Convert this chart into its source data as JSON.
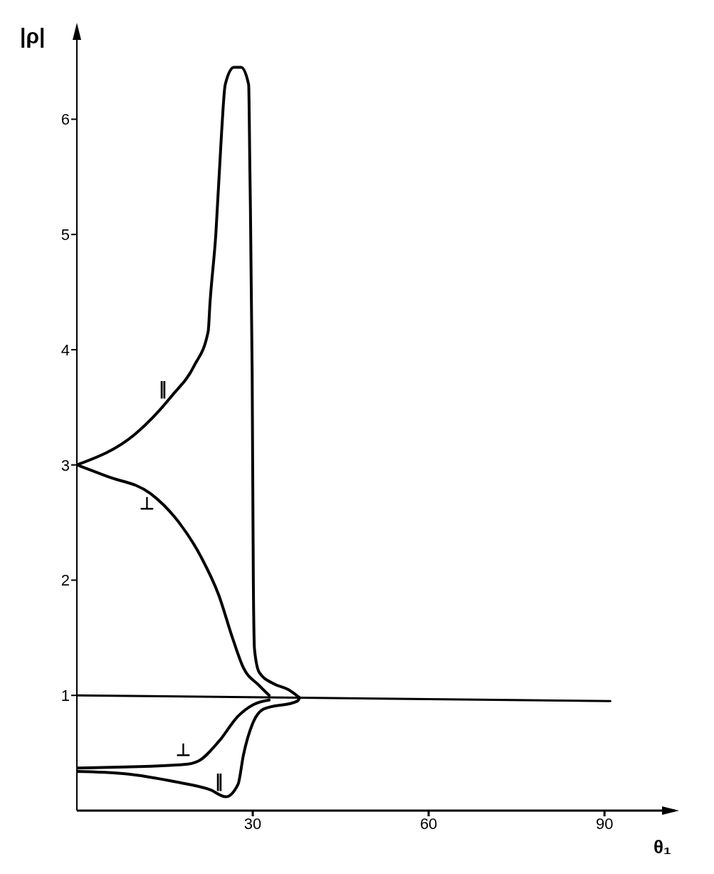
{
  "chart_data": {
    "type": "line",
    "xlabel": "θ₁",
    "ylabel": "|ρ|",
    "xlim": [
      0,
      102
    ],
    "ylim": [
      0,
      6.8
    ],
    "xticks": [
      30,
      60,
      90
    ],
    "yticks": [
      1,
      2,
      3,
      4,
      5,
      6
    ],
    "grid": false,
    "marker": "none",
    "line_style": "solid",
    "series": [
      {
        "name": "∥",
        "color": "#000000",
        "x": [
          0,
          10,
          16.2,
          20,
          22.4,
          22.7,
          23.7,
          24.7,
          25.3,
          26.8,
          28,
          29.3,
          29.5,
          29.9,
          30.1,
          30.3,
          31.1,
          33.6,
          36.1,
          38
        ],
        "values": [
          3,
          3.27,
          3.6,
          3.86,
          4.16,
          4.4,
          5.0,
          5.9,
          6.3,
          6.45,
          6.45,
          6.3,
          5.6,
          3.8,
          2.0,
          1.4,
          1.2,
          1.1,
          1.05,
          0.98
        ]
      },
      {
        "name": "⊥",
        "color": "#000000",
        "x": [
          0,
          5.2,
          12.6,
          16.8,
          21.2,
          24.2,
          26.6,
          28.4,
          31,
          32.8
        ],
        "values": [
          3,
          2.9,
          2.75,
          2.54,
          2.2,
          1.87,
          1.49,
          1.24,
          1.09,
          1.0
        ]
      },
      {
        "name": "⊥",
        "color": "#000000",
        "x": [
          0,
          18.2,
          20.7,
          24.2,
          27.5,
          30.1,
          32.8
        ],
        "values": [
          0.37,
          0.4,
          0.43,
          0.6,
          0.82,
          0.92,
          0.96
        ]
      },
      {
        "name": "∥",
        "color": "#000000",
        "x": [
          0,
          8.2,
          16.8,
          22.8,
          25.4,
          27.5,
          28.4,
          30.1,
          31.8,
          37.6,
          38
        ],
        "values": [
          0.34,
          0.32,
          0.25,
          0.18,
          0.12,
          0.23,
          0.48,
          0.77,
          0.88,
          0.95,
          0.98
        ]
      },
      {
        "color": "#000000",
        "x": [
          0,
          38,
          91
        ],
        "values": [
          1,
          0.98,
          0.95
        ]
      }
    ]
  }
}
